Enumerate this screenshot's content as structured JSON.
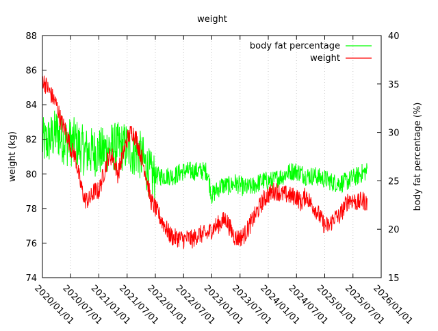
{
  "chart_data": {
    "type": "line",
    "title": "weight",
    "ylabel": "weight (kg)",
    "y2label": "body fat percentage (%)",
    "xlim": [
      "2020/01/01",
      "2026/01/01"
    ],
    "ylim": [
      74,
      88
    ],
    "y2lim": [
      15,
      40
    ],
    "xticks": [
      "2020/01/01",
      "2020/07/01",
      "2021/01/01",
      "2021/07/01",
      "2022/01/01",
      "2022/07/01",
      "2023/01/01",
      "2023/07/01",
      "2024/01/01",
      "2024/07/01",
      "2025/01/01",
      "2025/07/01",
      "2026/01/01"
    ],
    "yticks": [
      "74",
      "76",
      "78",
      "80",
      "82",
      "84",
      "86",
      "88"
    ],
    "y2ticks": [
      "15",
      "20",
      "25",
      "30",
      "35",
      "40"
    ],
    "grid": "vertical dashed at x ticks",
    "legend_position": "top-right",
    "x_months_start": "2020/01",
    "series": [
      {
        "name": "body fat percentage",
        "axis": "right",
        "color": "#00ff00",
        "monthly_values": [
          29,
          29,
          29.5,
          30,
          29.5,
          29,
          29,
          29,
          28.5,
          28,
          28,
          28,
          28,
          28,
          28.5,
          28.5,
          28.5,
          28.5,
          28.5,
          28,
          28,
          27.5,
          26.5,
          25.5,
          25.5,
          25.5,
          25.5,
          25.5,
          25.5,
          25.8,
          26,
          26,
          26,
          26,
          26,
          26,
          23.5,
          24,
          24.5,
          24.5,
          24.5,
          24.8,
          24.5,
          24.3,
          24.3,
          24.5,
          24.8,
          25,
          25,
          25,
          25.3,
          25.5,
          25.8,
          26,
          26,
          25.8,
          25.5,
          25.5,
          25.5,
          25.3,
          25.2,
          25,
          24.8,
          24.8,
          24.8,
          25,
          25.3,
          25.5,
          25.8,
          26
        ]
      },
      {
        "name": "weight",
        "axis": "left",
        "color": "#ff0000",
        "monthly_values": [
          85.5,
          85,
          84.5,
          84,
          83,
          82.5,
          81.5,
          81,
          79.5,
          78.5,
          78.5,
          79,
          79,
          80,
          81,
          81,
          80,
          81,
          82,
          82.5,
          82,
          81,
          80,
          78.5,
          78,
          77.5,
          77,
          76.5,
          76.3,
          76.3,
          76.2,
          76.3,
          76.2,
          76.5,
          76.5,
          76.5,
          76.8,
          77,
          77.2,
          77.4,
          76.8,
          76.3,
          76.3,
          76.5,
          77,
          77.5,
          78,
          78.5,
          78.8,
          79,
          79,
          78.8,
          78.8,
          78.7,
          78.7,
          78.3,
          78.8,
          78.3,
          78,
          77.5,
          77,
          77,
          77.5,
          77.5,
          78,
          78.5,
          78.5,
          78.3,
          78.5,
          78.3
        ]
      }
    ]
  }
}
